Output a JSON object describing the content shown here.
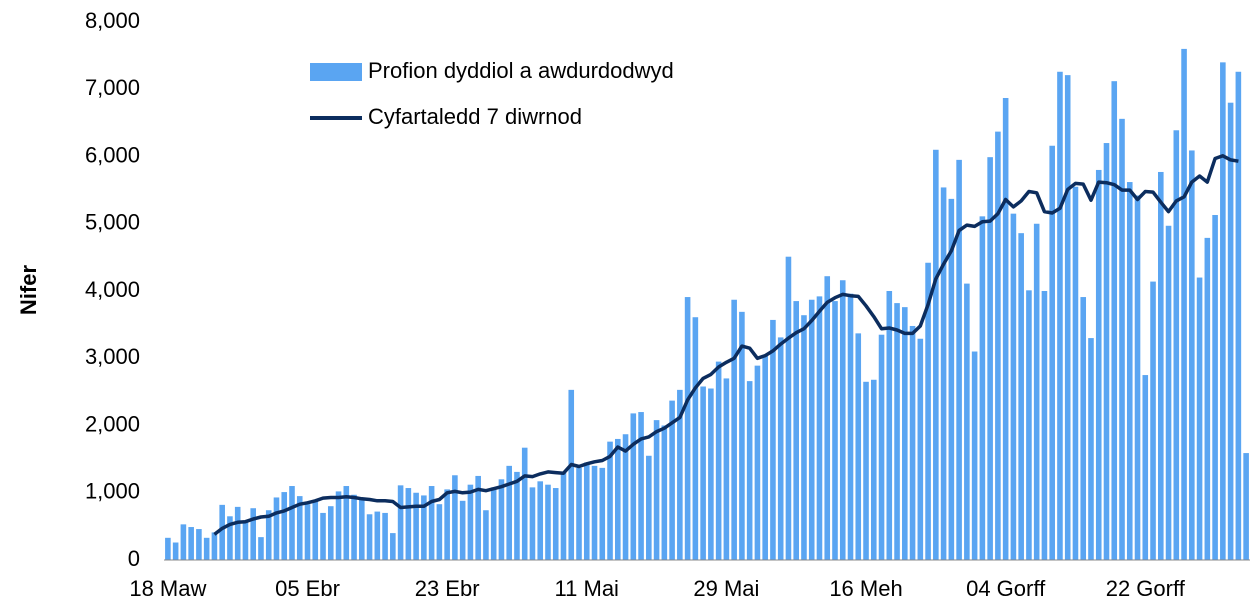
{
  "chart_data": {
    "type": "bar",
    "ylabel": "Nifer",
    "categories": [
      "18 Maw",
      null,
      null,
      null,
      null,
      null,
      null,
      null,
      null,
      null,
      null,
      null,
      null,
      null,
      null,
      null,
      null,
      null,
      "05 Ebr",
      null,
      null,
      null,
      null,
      null,
      null,
      null,
      null,
      null,
      null,
      null,
      null,
      null,
      null,
      null,
      null,
      null,
      "23 Ebr",
      null,
      null,
      null,
      null,
      null,
      null,
      null,
      null,
      null,
      null,
      null,
      null,
      null,
      null,
      null,
      null,
      null,
      "11 Mai",
      null,
      null,
      null,
      null,
      null,
      null,
      null,
      null,
      null,
      null,
      null,
      null,
      null,
      null,
      null,
      null,
      null,
      "29 Mai",
      null,
      null,
      null,
      null,
      null,
      null,
      null,
      null,
      null,
      null,
      null,
      null,
      null,
      null,
      null,
      null,
      null,
      "16 Meh",
      null,
      null,
      null,
      null,
      null,
      null,
      null,
      null,
      null,
      null,
      null,
      null,
      null,
      null,
      null,
      null,
      null,
      "04 Gorff",
      null,
      null,
      null,
      null,
      null,
      null,
      null,
      null,
      null,
      null,
      null,
      null,
      null,
      null,
      null,
      null,
      null,
      "22 Gorff",
      null,
      null,
      null,
      null,
      null,
      null,
      null,
      null,
      null,
      null,
      null,
      null,
      null
    ],
    "series": [
      {
        "name": "Profion dyddiol a awdurdodwyd",
        "color": "#5aa5f2",
        "type": "bar",
        "values": [
          330,
          260,
          530,
          490,
          460,
          330,
          410,
          820,
          650,
          790,
          590,
          770,
          340,
          740,
          930,
          1010,
          1100,
          950,
          830,
          890,
          700,
          800,
          1020,
          1100,
          970,
          900,
          680,
          720,
          700,
          400,
          1110,
          1070,
          1000,
          960,
          1100,
          830,
          1050,
          1260,
          880,
          1120,
          1250,
          740,
          1080,
          1200,
          1400,
          1310,
          1670,
          1080,
          1170,
          1120,
          1070,
          1300,
          2530,
          1370,
          1450,
          1400,
          1370,
          1760,
          1800,
          1870,
          2180,
          2200,
          1550,
          2080,
          2000,
          2370,
          2530,
          3910,
          3610,
          2580,
          2550,
          2950,
          2700,
          3870,
          3690,
          2660,
          2890,
          3040,
          3570,
          3310,
          4510,
          3850,
          3640,
          3870,
          3920,
          4220,
          3850,
          4160,
          3960,
          3370,
          2650,
          2680,
          3350,
          4000,
          3820,
          3760,
          3480,
          3290,
          4420,
          6100,
          5540,
          5370,
          5950,
          4110,
          3100,
          5110,
          5990,
          6370,
          6870,
          5150,
          4860,
          4010,
          5000,
          4000,
          6160,
          7260,
          7210,
          5550,
          3910,
          3300,
          5800,
          6200,
          7120,
          6560,
          5620,
          5420,
          2750,
          4140,
          5770,
          4970,
          6390,
          7600,
          6090,
          4200,
          4790,
          5130,
          7400,
          6800,
          7260,
          1590
        ]
      },
      {
        "name": "Cyfartaledd 7 diwrnod",
        "color": "#0c2d5e",
        "type": "line",
        "values": [
          null,
          null,
          null,
          null,
          null,
          null,
          380,
          470,
          530,
          560,
          570,
          610,
          640,
          650,
          700,
          730,
          780,
          830,
          850,
          880,
          920,
          930,
          930,
          940,
          930,
          910,
          900,
          880,
          880,
          870,
          780,
          790,
          800,
          800,
          870,
          900,
          1000,
          1020,
          1000,
          1010,
          1050,
          1030,
          1060,
          1090,
          1130,
          1170,
          1250,
          1240,
          1280,
          1310,
          1300,
          1290,
          1420,
          1390,
          1430,
          1460,
          1480,
          1540,
          1680,
          1620,
          1720,
          1800,
          1830,
          1910,
          1960,
          2040,
          2120,
          2380,
          2560,
          2700,
          2760,
          2870,
          2940,
          3000,
          3180,
          3150,
          3000,
          3040,
          3110,
          3210,
          3300,
          3380,
          3440,
          3560,
          3700,
          3830,
          3900,
          3950,
          3930,
          3920,
          3780,
          3620,
          3440,
          3450,
          3420,
          3370,
          3370,
          3480,
          3800,
          4180,
          4400,
          4600,
          4900,
          4980,
          4960,
          5030,
          5040,
          5150,
          5360,
          5250,
          5340,
          5480,
          5460,
          5180,
          5160,
          5230,
          5510,
          5600,
          5590,
          5350,
          5620,
          5610,
          5580,
          5500,
          5500,
          5360,
          5480,
          5470,
          5320,
          5180,
          5340,
          5400,
          5620,
          5710,
          5620,
          5970,
          6010,
          5950,
          5930,
          null
        ]
      }
    ],
    "ylim": [
      0,
      8000
    ],
    "yticks": [
      0,
      {
        "value": 1000,
        "label": "1,000"
      },
      {
        "value": 2000,
        "label": "2,000"
      },
      {
        "value": 3000,
        "label": "3,000"
      },
      {
        "value": 4000,
        "label": "4,000"
      },
      {
        "value": 5000,
        "label": "5,000"
      },
      {
        "value": 6000,
        "label": "6,000"
      },
      {
        "value": 7000,
        "label": "7,000"
      },
      {
        "value": 8000,
        "label": "8,000"
      }
    ],
    "grid": false,
    "legend": "top-left"
  }
}
